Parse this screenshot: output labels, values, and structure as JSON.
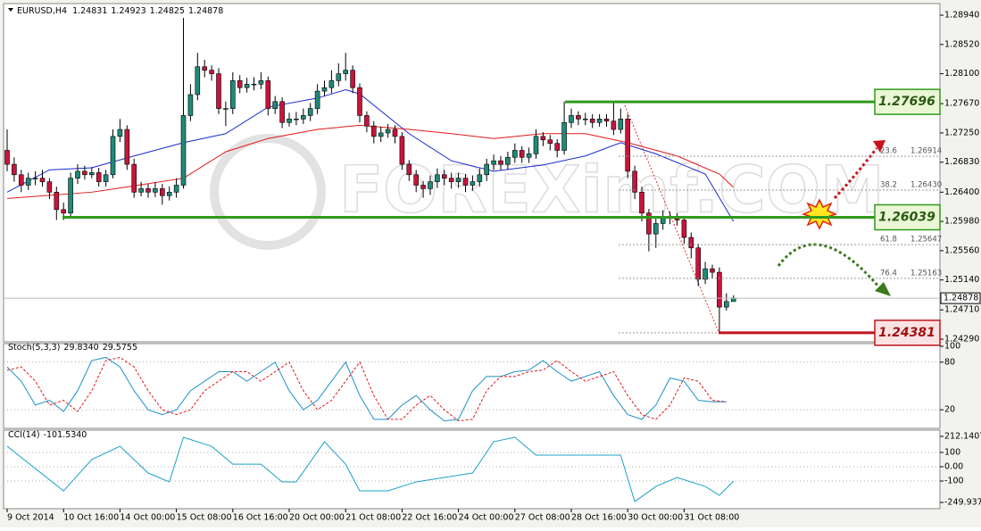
{
  "chart_data": [
    {
      "type": "candlestick",
      "symbol": "EURUSD,H4",
      "open": 1.24831,
      "high": 1.24923,
      "low": 1.24825,
      "close": 1.24878,
      "watermark": "FOREXimf.COM",
      "up_color": "#1f8a78",
      "down_color": "#c8143c",
      "ylim": [
        1.24252,
        1.29094
      ],
      "yticks": [
        {
          "value": 1.2894,
          "label": "1.28940"
        },
        {
          "value": 1.2852,
          "label": "1.28520"
        },
        {
          "value": 1.281,
          "label": "1.28100"
        },
        {
          "value": 1.2767,
          "label": "1.27670"
        },
        {
          "value": 1.2725,
          "label": "1.27250"
        },
        {
          "value": 1.2683,
          "label": "1.26830"
        },
        {
          "value": 1.264,
          "label": "1.26400"
        },
        {
          "value": 1.2598,
          "label": "1.25980"
        },
        {
          "value": 1.2556,
          "label": "1.25560"
        },
        {
          "value": 1.2514,
          "label": "1.25140"
        },
        {
          "value": 1.2471,
          "label": "1.24710"
        },
        {
          "value": 1.2429,
          "label": "1.24290"
        }
      ],
      "x_labels": [
        {
          "index": 0,
          "label": "9 Oct 2014"
        },
        {
          "index": 8,
          "label": "10 Oct 16:00"
        },
        {
          "index": 16,
          "label": "14 Oct 00:00"
        },
        {
          "index": 24,
          "label": "15 Oct 08:00"
        },
        {
          "index": 32,
          "label": "16 Oct 16:00"
        },
        {
          "index": 40,
          "label": "20 Oct 00:00"
        },
        {
          "index": 48,
          "label": "21 Oct 08:00"
        },
        {
          "index": 56,
          "label": "22 Oct 16:00"
        },
        {
          "index": 64,
          "label": "24 Oct 00:00"
        },
        {
          "index": 72,
          "label": "27 Oct 08:00"
        },
        {
          "index": 80,
          "label": "28 Oct 16:00"
        },
        {
          "index": 88,
          "label": "30 Oct 00:00"
        },
        {
          "index": 96,
          "label": "31 Oct 08:00"
        }
      ],
      "candles": {
        "open": [
          1.27,
          1.268,
          1.2665,
          1.265,
          1.266,
          1.266,
          1.2655,
          1.264,
          1.2615,
          1.261,
          1.266,
          1.267,
          1.2665,
          1.2668,
          1.2655,
          1.2665,
          1.272,
          1.273,
          1.268,
          1.264,
          1.2645,
          1.264,
          1.2645,
          1.2635,
          1.264,
          1.265,
          1.275,
          1.278,
          1.282,
          1.2815,
          1.281,
          1.276,
          1.276,
          1.28,
          1.279,
          1.2795,
          1.2795,
          1.28,
          1.276,
          1.277,
          1.274,
          1.2745,
          1.2745,
          1.275,
          1.276,
          1.2785,
          1.279,
          1.28,
          1.281,
          1.2815,
          1.279,
          1.275,
          1.2735,
          1.272,
          1.2725,
          1.273,
          1.272,
          1.268,
          1.2665,
          1.265,
          1.2645,
          1.2655,
          1.2665,
          1.266,
          1.2655,
          1.266,
          1.265,
          1.2655,
          1.2665,
          1.268,
          1.2685,
          1.268,
          1.269,
          1.27,
          1.269,
          1.2695,
          1.272,
          1.2715,
          1.271,
          1.27,
          1.274,
          1.275,
          1.2745,
          1.2745,
          1.274,
          1.2745,
          1.2742,
          1.273,
          1.2745,
          1.267,
          1.264,
          1.261,
          1.258,
          1.2595,
          1.2605,
          1.2603,
          1.26,
          1.2575,
          1.256,
          1.2515,
          1.253,
          1.2525,
          1.2475,
          1.2483
        ],
        "high": [
          1.273,
          1.269,
          1.2672,
          1.2668,
          1.267,
          1.2672,
          1.266,
          1.2648,
          1.2625,
          1.2668,
          1.268,
          1.2678,
          1.2676,
          1.2675,
          1.2672,
          1.273,
          1.2745,
          1.2736,
          1.2688,
          1.2655,
          1.2652,
          1.2654,
          1.2652,
          1.2648,
          1.266,
          1.289,
          1.2795,
          1.284,
          1.283,
          1.2822,
          1.2818,
          1.277,
          1.2812,
          1.2808,
          1.2804,
          1.2805,
          1.2812,
          1.2806,
          1.2778,
          1.2776,
          1.2754,
          1.2755,
          1.276,
          1.2768,
          1.2795,
          1.28,
          1.2815,
          1.2825,
          1.284,
          1.2822,
          1.2796,
          1.2756,
          1.2742,
          1.2734,
          1.2738,
          1.2736,
          1.2726,
          1.2686,
          1.2672,
          1.2656,
          1.2664,
          1.2674,
          1.2672,
          1.2668,
          1.2668,
          1.2666,
          1.2664,
          1.2674,
          1.2688,
          1.2694,
          1.2692,
          1.2698,
          1.271,
          1.2706,
          1.2704,
          1.273,
          1.2726,
          1.2722,
          1.2716,
          1.277,
          1.276,
          1.2756,
          1.2754,
          1.2752,
          1.2752,
          1.2752,
          1.277,
          1.276,
          1.2752,
          1.2678,
          1.2648,
          1.2616,
          1.2604,
          1.2614,
          1.2612,
          1.261,
          1.2606,
          1.2582,
          1.2566,
          1.254,
          1.2536,
          1.2532,
          1.2495,
          1.2492
        ],
        "low": [
          1.267,
          1.2655,
          1.264,
          1.2643,
          1.265,
          1.2648,
          1.263,
          1.26,
          1.26,
          1.2605,
          1.2652,
          1.2658,
          1.266,
          1.2648,
          1.2648,
          1.266,
          1.2712,
          1.2672,
          1.2632,
          1.2634,
          1.2632,
          1.2633,
          1.2622,
          1.2628,
          1.2632,
          1.2645,
          1.2742,
          1.2772,
          1.2805,
          1.28,
          1.2752,
          1.2735,
          1.2752,
          1.2782,
          1.2783,
          1.2786,
          1.2788,
          1.275,
          1.2752,
          1.2732,
          1.2734,
          1.2736,
          1.2738,
          1.2742,
          1.2752,
          1.2778,
          1.2782,
          1.2792,
          1.28,
          1.2782,
          1.274,
          1.2726,
          1.271,
          1.2712,
          1.2718,
          1.271,
          1.2672,
          1.2656,
          1.264,
          1.2632,
          1.2636,
          1.2646,
          1.265,
          1.2645,
          1.2646,
          1.264,
          1.2642,
          1.2648,
          1.2656,
          1.2672,
          1.2672,
          1.2672,
          1.2682,
          1.2682,
          1.2682,
          1.2688,
          1.2706,
          1.27,
          1.269,
          1.2694,
          1.2732,
          1.2736,
          1.2736,
          1.2732,
          1.2734,
          1.2734,
          1.2722,
          1.2724,
          1.266,
          1.263,
          1.2598,
          1.2555,
          1.256,
          1.2586,
          1.2594,
          1.2592,
          1.2566,
          1.2545,
          1.2505,
          1.2508,
          1.2516,
          1.2438,
          1.247,
          1.2483
        ],
        "close": [
          1.268,
          1.2665,
          1.265,
          1.266,
          1.266,
          1.2655,
          1.264,
          1.2615,
          1.261,
          1.266,
          1.267,
          1.2665,
          1.2668,
          1.2655,
          1.2665,
          1.272,
          1.273,
          1.268,
          1.264,
          1.2645,
          1.264,
          1.2645,
          1.2635,
          1.264,
          1.265,
          1.275,
          1.278,
          1.282,
          1.2815,
          1.281,
          1.276,
          1.276,
          1.28,
          1.279,
          1.2795,
          1.2795,
          1.28,
          1.276,
          1.277,
          1.274,
          1.2745,
          1.2745,
          1.275,
          1.276,
          1.2785,
          1.279,
          1.28,
          1.281,
          1.2815,
          1.279,
          1.275,
          1.2735,
          1.272,
          1.2725,
          1.273,
          1.272,
          1.268,
          1.2665,
          1.265,
          1.2645,
          1.2655,
          1.2665,
          1.266,
          1.2655,
          1.266,
          1.265,
          1.2655,
          1.2665,
          1.268,
          1.2685,
          1.268,
          1.269,
          1.27,
          1.269,
          1.2695,
          1.272,
          1.2715,
          1.271,
          1.27,
          1.274,
          1.275,
          1.2745,
          1.2745,
          1.274,
          1.2745,
          1.2742,
          1.273,
          1.2745,
          1.267,
          1.264,
          1.261,
          1.258,
          1.2595,
          1.2605,
          1.2603,
          1.26,
          1.2575,
          1.256,
          1.2515,
          1.253,
          1.2525,
          1.2475,
          1.2483,
          1.2488
        ]
      },
      "series": [
        {
          "color": "#1a2ad0",
          "x": [
            0,
            6,
            12,
            18,
            25,
            31,
            37,
            44,
            48,
            50,
            57,
            63,
            69,
            76,
            82,
            87,
            92,
            99,
            103
          ],
          "values": [
            1.264,
            1.2672,
            1.2675,
            1.2692,
            1.2711,
            1.2724,
            1.2762,
            1.2775,
            1.2787,
            1.2781,
            1.2724,
            1.2685,
            1.267,
            1.2679,
            1.2692,
            1.2711,
            1.2695,
            1.2666,
            1.2598
          ]
        },
        {
          "color": "#e01818",
          "x": [
            0,
            12,
            18,
            25,
            31,
            37,
            44,
            50,
            57,
            63,
            69,
            76,
            82,
            88,
            95,
            101,
            103
          ],
          "values": [
            1.2631,
            1.264,
            1.2649,
            1.266,
            1.2698,
            1.2717,
            1.273,
            1.2736,
            1.273,
            1.2724,
            1.2717,
            1.2724,
            1.2724,
            1.2711,
            1.2692,
            1.2666,
            1.2647
          ]
        }
      ],
      "levels": [
        {
          "value": 1.27696,
          "color": "#2f9a1c",
          "box": "#eaf6d6"
        },
        {
          "value": 1.26039,
          "color": "#2f9a1c",
          "box": "#eaf6d6"
        },
        {
          "value": 1.24381,
          "color": "#c0141e",
          "box": "#fbe2e2"
        }
      ],
      "fib_levels": [
        {
          "ratio": 23.6,
          "price": 1.26914
        },
        {
          "ratio": 38.2,
          "price": {
            "value": 1.2643,
            "label": "1.26430"
          }
        },
        {
          "ratio": 61.8,
          "price": 1.25647
        },
        {
          "ratio": 76.4,
          "price": 1.25163
        }
      ]
    },
    {
      "type": "line",
      "title": "Stoch(5,3,3)",
      "readings": [
        {
          "value": 29.834,
          "label": "29.8340"
        },
        29.5755
      ],
      "ylim": [
        0,
        100
      ],
      "yticks": [
        100,
        80,
        20
      ],
      "series": [
        {
          "color": "#1e90c8",
          "dash": false,
          "x": [
            0,
            2,
            4,
            6,
            8,
            10,
            12,
            14,
            16,
            18,
            20,
            22,
            24,
            26,
            28,
            30,
            32,
            34,
            36,
            38,
            40,
            42,
            44,
            46,
            48,
            50,
            52,
            54,
            56,
            58,
            60,
            62,
            64,
            66,
            68,
            70,
            72,
            74,
            76,
            78,
            80,
            82,
            84,
            86,
            88,
            90,
            92,
            94,
            96,
            98,
            100,
            102
          ],
          "values": [
            74,
            56,
            26,
            32,
            18,
            44,
            82,
            86,
            74,
            44,
            20,
            14,
            20,
            44,
            56,
            68,
            68,
            56,
            68,
            80,
            44,
            20,
            32,
            56,
            80,
            38,
            8,
            8,
            26,
            38,
            20,
            6,
            8,
            44,
            62,
            62,
            68,
            70,
            82,
            68,
            56,
            62,
            68,
            38,
            14,
            8,
            26,
            60,
            56,
            32,
            30,
            30
          ]
        },
        {
          "color": "#e01818",
          "dash": true,
          "x": [
            0,
            2,
            4,
            6,
            8,
            10,
            12,
            14,
            16,
            18,
            20,
            22,
            24,
            26,
            28,
            30,
            32,
            34,
            36,
            38,
            40,
            42,
            44,
            46,
            48,
            50,
            52,
            54,
            56,
            58,
            60,
            62,
            64,
            66,
            68,
            70,
            72,
            74,
            76,
            78,
            80,
            82,
            84,
            86,
            88,
            90,
            92,
            94,
            96,
            98,
            100,
            102
          ],
          "values": [
            70,
            74,
            56,
            26,
            32,
            18,
            44,
            82,
            86,
            74,
            44,
            20,
            14,
            20,
            44,
            56,
            68,
            68,
            56,
            68,
            80,
            44,
            20,
            32,
            56,
            80,
            38,
            8,
            8,
            26,
            38,
            20,
            6,
            8,
            44,
            62,
            62,
            68,
            70,
            82,
            68,
            56,
            62,
            68,
            38,
            14,
            8,
            26,
            60,
            56,
            32,
            30
          ]
        }
      ]
    },
    {
      "type": "line",
      "title": "CCI(14)",
      "readings": [
        {
          "value": -101.534,
          "label": "-101.5340"
        }
      ],
      "ylim": [
        -249.9374,
        212.1407
      ],
      "yticks": [
        212.1407,
        100,
        {
          "value": 0,
          "label": "0.00"
        },
        -100,
        -249.9374
      ],
      "series": [
        {
          "color": "#1ea0c8",
          "dash": false,
          "x": [
            0,
            8,
            12,
            16,
            20,
            23,
            25,
            29,
            32,
            36,
            39,
            41,
            45,
            48,
            50,
            54,
            58,
            62,
            66,
            69,
            72,
            75,
            78,
            82,
            87,
            89,
            92,
            95,
            99,
            101,
            103
          ],
          "values": [
            143,
            -169,
            50,
            143,
            -44,
            -106,
            206,
            143,
            18,
            18,
            -106,
            -106,
            175,
            18,
            -169,
            -169,
            -106,
            -75,
            -44,
            175,
            206,
            81,
            81,
            81,
            81,
            -244,
            -138,
            -75,
            -138,
            -200,
            -101.534
          ]
        }
      ]
    }
  ]
}
